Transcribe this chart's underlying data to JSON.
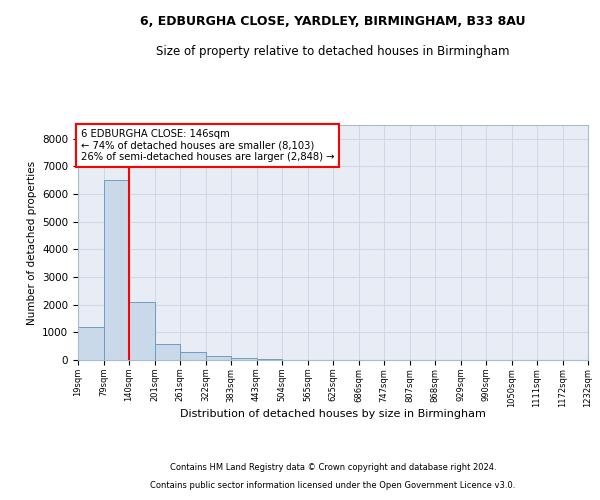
{
  "title1": "6, EDBURGHA CLOSE, YARDLEY, BIRMINGHAM, B33 8AU",
  "title2": "Size of property relative to detached houses in Birmingham",
  "xlabel": "Distribution of detached houses by size in Birmingham",
  "ylabel": "Number of detached properties",
  "footnote1": "Contains HM Land Registry data © Crown copyright and database right 2024.",
  "footnote2": "Contains public sector information licensed under the Open Government Licence v3.0.",
  "bar_color": "#c9d9ea",
  "bar_edge_color": "#6a9ec0",
  "annotation_text": "6 EDBURGHA CLOSE: 146sqm\n← 74% of detached houses are smaller (8,103)\n26% of semi-detached houses are larger (2,848) →",
  "red_line_x": 2,
  "bin_labels": [
    "19sqm",
    "79sqm",
    "140sqm",
    "201sqm",
    "261sqm",
    "322sqm",
    "383sqm",
    "443sqm",
    "504sqm",
    "565sqm",
    "625sqm",
    "686sqm",
    "747sqm",
    "807sqm",
    "868sqm",
    "929sqm",
    "990sqm",
    "1050sqm",
    "1111sqm",
    "1172sqm",
    "1232sqm"
  ],
  "bar_heights": [
    1200,
    6500,
    2100,
    580,
    300,
    130,
    70,
    30,
    8,
    4,
    3,
    0,
    0,
    0,
    0,
    0,
    0,
    0,
    0,
    0
  ],
  "ylim": [
    0,
    8500
  ],
  "yticks": [
    0,
    1000,
    2000,
    3000,
    4000,
    5000,
    6000,
    7000,
    8000
  ],
  "grid_color": "#d0d8e8",
  "background_color": "#e8edf5",
  "title1_fontsize": 9,
  "title2_fontsize": 8.5
}
